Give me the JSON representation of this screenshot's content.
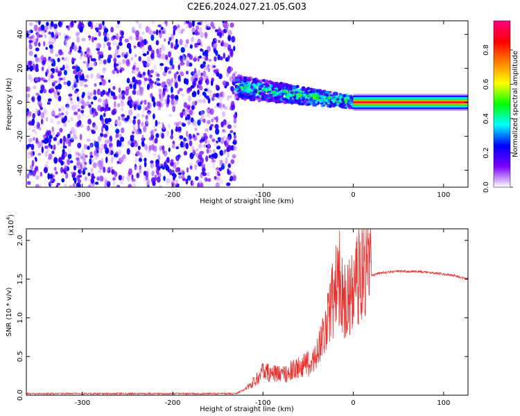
{
  "title": "C2E6.2024.027.21.05.G03",
  "chart_data": [
    {
      "type": "heatmap",
      "xlabel": "Height of straight line (km)",
      "ylabel": "Frequency (Hz)",
      "xlim": [
        -362,
        127
      ],
      "ylim": [
        -50,
        48
      ],
      "x_ticks": [
        -300,
        -200,
        -100,
        0,
        100
      ],
      "y_ticks": [
        -40,
        -20,
        0,
        20,
        40
      ],
      "x_tick_labels": [
        "-300",
        "-200",
        "-100",
        "0",
        "100"
      ],
      "y_tick_labels": [
        "-40",
        "-20",
        "0",
        "20",
        "40"
      ],
      "colorbar": {
        "label": "Normalized spectral amplitude",
        "range": [
          0.0,
          0.97
        ],
        "ticks": [
          0.0,
          0.2,
          0.4,
          0.6,
          0.8
        ],
        "tick_labels": [
          "0.0",
          "0.2",
          "0.4",
          "0.6",
          "0.8"
        ],
        "colors": [
          "#ffffff",
          "#7b00ff",
          "#0000ff",
          "#00ffff",
          "#00ff00",
          "#ffff00",
          "#ff8000",
          "#ff0000",
          "#ff0080"
        ]
      },
      "regions": [
        {
          "name": "noise",
          "x_range": [
            -362,
            -130
          ],
          "y_range": [
            -50,
            48
          ],
          "amplitude": 0.12
        },
        {
          "name": "signal_scatter",
          "x_range": [
            -130,
            0
          ],
          "center_freq_hz": [
            9,
            0
          ],
          "amplitude": 0.4
        },
        {
          "name": "carrier",
          "x_range": [
            0,
            127
          ],
          "center_freq_hz": 0,
          "amplitude": 0.9
        }
      ]
    },
    {
      "type": "line",
      "xlabel": "Height of straight line (km)",
      "ylabel": "SNR (10 * v/v)",
      "y_multiplier_label": "(x10",
      "y_multiplier_exponent": "4",
      "y_multiplier_close": ")",
      "xlim": [
        -362,
        127
      ],
      "ylim": [
        0,
        2.15
      ],
      "x_ticks": [
        -300,
        -200,
        -100,
        0,
        100
      ],
      "y_ticks": [
        0.0,
        0.5,
        1.0,
        1.5,
        2.0
      ],
      "x_tick_labels": [
        "-300",
        "-200",
        "-100",
        "0",
        "100"
      ],
      "y_tick_labels": [
        "0.0",
        "0.5",
        "1.0",
        "1.5",
        "2.0"
      ],
      "color": "#e8302e",
      "series": [
        {
          "x": [
            -362,
            -300,
            -200,
            -130,
            -115,
            -100,
            -80,
            -60,
            -45,
            -35,
            -25,
            -15,
            -10,
            -5,
            0,
            5,
            10,
            20,
            30,
            50,
            70,
            90,
            110,
            127
          ],
          "y": [
            0.02,
            0.02,
            0.02,
            0.02,
            0.1,
            0.25,
            0.22,
            0.3,
            0.35,
            0.6,
            0.95,
            1.3,
            1.0,
            1.05,
            1.15,
            1.25,
            1.4,
            1.55,
            1.58,
            1.6,
            1.6,
            1.58,
            1.55,
            1.5
          ]
        }
      ]
    }
  ]
}
